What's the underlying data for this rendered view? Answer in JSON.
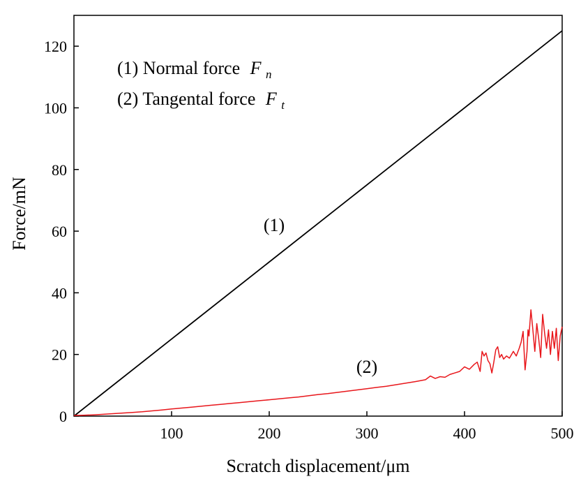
{
  "chart_data": {
    "type": "line",
    "title": "",
    "xlabel": "Scratch displacement/μm",
    "ylabel": "Force/mN",
    "xlim": [
      0,
      500
    ],
    "ylim": [
      0,
      130
    ],
    "xticks": [
      100,
      200,
      300,
      400,
      500
    ],
    "yticks": [
      0,
      20,
      40,
      60,
      80,
      100,
      120
    ],
    "grid": false,
    "legend": {
      "placement": "top-left",
      "entries": [
        {
          "prefix": "(1) Normal force",
          "symbol": "F",
          "subscript": "n"
        },
        {
          "prefix": "(2) Tangental force",
          "symbol": "F",
          "subscript": "t"
        }
      ]
    },
    "series": [
      {
        "label": "(1)",
        "label_at": [
          205,
          60
        ],
        "color": "#000000",
        "x": [
          0,
          500
        ],
        "y": [
          0,
          125
        ]
      },
      {
        "label": "(2)",
        "label_at": [
          300,
          14
        ],
        "color": "#e8161b",
        "x": [
          0,
          10,
          20,
          30,
          40,
          50,
          60,
          70,
          80,
          90,
          100,
          110,
          120,
          130,
          140,
          150,
          160,
          170,
          180,
          190,
          200,
          210,
          220,
          230,
          240,
          250,
          260,
          270,
          280,
          290,
          300,
          310,
          320,
          330,
          340,
          350,
          360,
          365,
          370,
          375,
          380,
          385,
          390,
          395,
          400,
          405,
          410,
          413,
          416,
          418,
          420,
          422,
          424,
          426,
          428,
          430,
          432,
          434,
          436,
          438,
          440,
          443,
          446,
          450,
          453,
          456,
          458,
          460,
          462,
          464,
          465,
          466,
          468,
          470,
          472,
          474,
          476,
          478,
          480,
          482,
          484,
          486,
          488,
          490,
          492,
          494,
          496,
          498,
          500
        ],
        "y": [
          0.2,
          0.3,
          0.4,
          0.6,
          0.8,
          1.0,
          1.2,
          1.4,
          1.7,
          2.0,
          2.3,
          2.6,
          2.9,
          3.2,
          3.5,
          3.8,
          4.1,
          4.4,
          4.7,
          5.0,
          5.3,
          5.6,
          5.9,
          6.2,
          6.6,
          7.0,
          7.3,
          7.7,
          8.1,
          8.5,
          8.9,
          9.3,
          9.7,
          10.2,
          10.7,
          11.2,
          11.8,
          13.0,
          12.2,
          12.8,
          12.6,
          13.5,
          14.0,
          14.5,
          16.0,
          15.2,
          16.8,
          17.5,
          14.5,
          21.0,
          19.5,
          20.5,
          18.0,
          17.0,
          14.0,
          17.5,
          21.5,
          22.5,
          19.0,
          20.0,
          18.5,
          19.5,
          18.8,
          21.0,
          19.5,
          22.0,
          24.0,
          27.5,
          15.0,
          21.0,
          28.0,
          26.0,
          34.5,
          28.0,
          21.0,
          30.0,
          25.0,
          19.0,
          33.0,
          27.0,
          22.0,
          28.0,
          20.0,
          27.5,
          22.0,
          28.5,
          18.0,
          26.0,
          29.0
        ]
      }
    ]
  }
}
